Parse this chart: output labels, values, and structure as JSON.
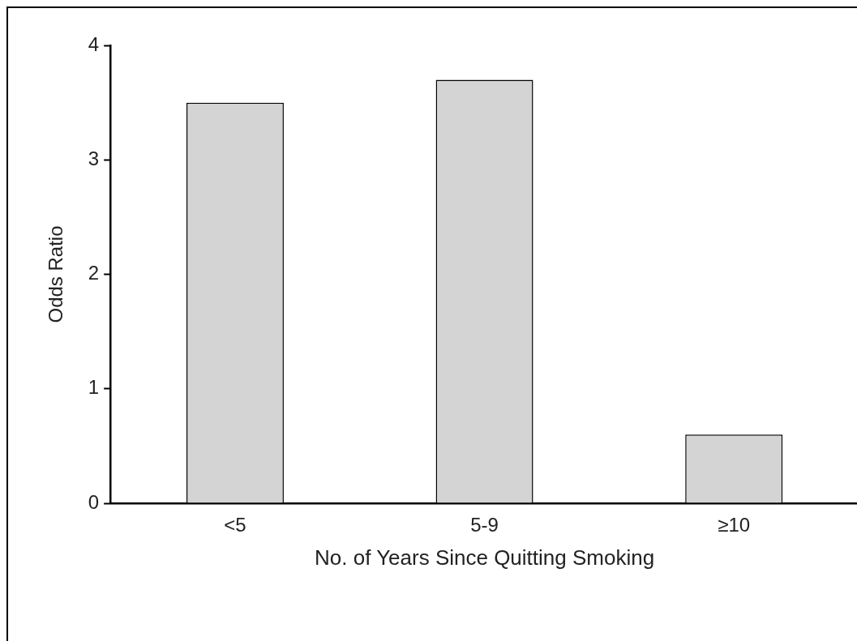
{
  "chart_data": {
    "type": "bar",
    "xlabel": "No. of Years Since Quitting Smoking",
    "ylabel": "Odds Ratio",
    "categories": [
      "<5",
      "5-9",
      "≥10"
    ],
    "values": [
      3.5,
      3.7,
      0.6
    ],
    "color": "#d4d4d4",
    "ylim": [
      0,
      4
    ],
    "yticks": [
      0,
      1,
      2,
      3,
      4
    ],
    "grid": false,
    "legend": false
  }
}
